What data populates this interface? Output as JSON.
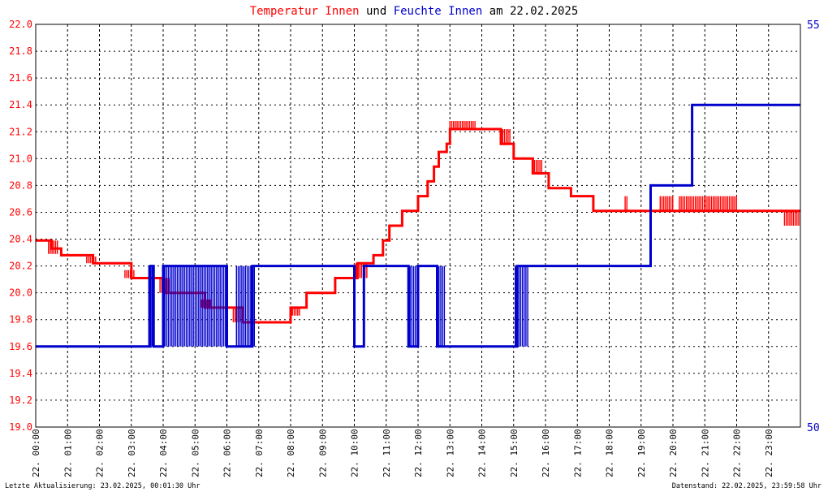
{
  "chart_data": {
    "type": "line",
    "title_parts": [
      {
        "text": "Temperatur Innen",
        "color": "#ff0000"
      },
      {
        "text": " und ",
        "color": "#000000"
      },
      {
        "text": "Feuchte Innen",
        "color": "#0000cc"
      },
      {
        "text": " am 22.02.2025",
        "color": "#000000"
      }
    ],
    "x_unit": "hour",
    "xlim": [
      0,
      24
    ],
    "x_tick_labels": [
      "22. 00:00",
      "22. 01:00",
      "22. 02:00",
      "22. 03:00",
      "22. 04:00",
      "22. 05:00",
      "22. 06:00",
      "22. 07:00",
      "22. 08:00",
      "22. 09:00",
      "22. 10:00",
      "22. 11:00",
      "22. 12:00",
      "22. 13:00",
      "22. 14:00",
      "22. 15:00",
      "22. 16:00",
      "22. 17:00",
      "22. 18:00",
      "22. 19:00",
      "22. 20:00",
      "22. 21:00",
      "22. 22:00",
      "22. 23:00"
    ],
    "y_left": {
      "ylim": [
        19.0,
        22.0
      ],
      "ticks": [
        "19.0",
        "19.2",
        "19.4",
        "19.6",
        "19.8",
        "20.0",
        "20.2",
        "20.4",
        "20.6",
        "20.8",
        "21.0",
        "21.2",
        "21.4",
        "21.6",
        "21.8",
        "22.0"
      ],
      "color": "#ff0000"
    },
    "y_right": {
      "ylim": [
        50,
        55
      ],
      "ticks": [
        "50",
        "55"
      ],
      "color": "#0000cc"
    },
    "grid": true,
    "series": [
      {
        "name": "Temperatur Innen",
        "axis": "left",
        "color": "#ff0000",
        "noise_bands": [
          [
            0.4,
            0.7,
            20.29,
            20.39
          ],
          [
            1.6,
            1.9,
            20.22,
            20.27
          ],
          [
            2.8,
            3.1,
            20.11,
            20.17
          ],
          [
            3.9,
            4.2,
            20.0,
            20.11
          ],
          [
            5.2,
            5.5,
            19.89,
            19.95
          ],
          [
            6.2,
            6.5,
            19.78,
            19.89
          ],
          [
            8.0,
            8.3,
            19.83,
            19.89
          ],
          [
            10.0,
            10.4,
            20.11,
            20.22
          ],
          [
            13.0,
            13.8,
            21.22,
            21.28
          ],
          [
            14.6,
            14.9,
            21.1,
            21.22
          ],
          [
            15.6,
            15.9,
            20.89,
            20.99
          ],
          [
            18.5,
            18.6,
            20.61,
            20.72
          ],
          [
            19.6,
            20.0,
            20.61,
            20.72
          ],
          [
            20.2,
            22.0,
            20.61,
            20.72
          ],
          [
            23.5,
            23.95,
            20.5,
            20.61
          ]
        ],
        "points": [
          [
            0,
            20.39
          ],
          [
            0.5,
            20.39
          ],
          [
            0.5,
            20.33
          ],
          [
            0.8,
            20.33
          ],
          [
            0.8,
            20.28
          ],
          [
            1.8,
            20.28
          ],
          [
            1.8,
            20.22
          ],
          [
            3.0,
            20.22
          ],
          [
            3.0,
            20.11
          ],
          [
            4.0,
            20.11
          ],
          [
            4.0,
            20.0
          ],
          [
            5.3,
            20.0
          ],
          [
            5.3,
            19.89
          ],
          [
            6.5,
            19.89
          ],
          [
            6.5,
            19.78
          ],
          [
            8.0,
            19.78
          ],
          [
            8.0,
            19.89
          ],
          [
            8.5,
            19.89
          ],
          [
            8.5,
            20.0
          ],
          [
            9.4,
            20.0
          ],
          [
            9.4,
            20.11
          ],
          [
            10.1,
            20.11
          ],
          [
            10.1,
            20.22
          ],
          [
            10.6,
            20.22
          ],
          [
            10.6,
            20.28
          ],
          [
            10.9,
            20.28
          ],
          [
            10.9,
            20.39
          ],
          [
            11.1,
            20.39
          ],
          [
            11.1,
            20.5
          ],
          [
            11.5,
            20.5
          ],
          [
            11.5,
            20.61
          ],
          [
            12.0,
            20.61
          ],
          [
            12.0,
            20.72
          ],
          [
            12.3,
            20.72
          ],
          [
            12.3,
            20.83
          ],
          [
            12.5,
            20.83
          ],
          [
            12.5,
            20.94
          ],
          [
            12.65,
            20.94
          ],
          [
            12.65,
            21.05
          ],
          [
            12.9,
            21.05
          ],
          [
            12.9,
            21.11
          ],
          [
            13.0,
            21.11
          ],
          [
            13.0,
            21.22
          ],
          [
            14.6,
            21.22
          ],
          [
            14.6,
            21.11
          ],
          [
            15.0,
            21.11
          ],
          [
            15.0,
            21.0
          ],
          [
            15.6,
            21.0
          ],
          [
            15.6,
            20.89
          ],
          [
            16.1,
            20.89
          ],
          [
            16.1,
            20.78
          ],
          [
            16.8,
            20.78
          ],
          [
            16.8,
            20.72
          ],
          [
            17.5,
            20.72
          ],
          [
            17.5,
            20.61
          ],
          [
            24.0,
            20.61
          ]
        ]
      },
      {
        "name": "Feuchte Innen",
        "axis": "right",
        "color": "#0000cc",
        "noise_bands": [
          [
            3.55,
            3.75,
            51.0,
            52.0
          ],
          [
            4.05,
            6.0,
            51.0,
            52.0
          ],
          [
            6.3,
            6.9,
            51.0,
            52.0
          ],
          [
            11.75,
            12.0,
            51.0,
            52.0
          ],
          [
            12.6,
            12.85,
            51.0,
            52.0
          ],
          [
            15.05,
            15.45,
            51.0,
            52.0
          ]
        ],
        "points": [
          [
            0,
            51.0
          ],
          [
            3.6,
            51.0
          ],
          [
            3.6,
            52.0
          ],
          [
            3.7,
            52.0
          ],
          [
            3.7,
            51.0
          ],
          [
            4.0,
            51.0
          ],
          [
            4.0,
            52.0
          ],
          [
            6.0,
            52.0
          ],
          [
            6.0,
            51.0
          ],
          [
            6.8,
            51.0
          ],
          [
            6.8,
            52.0
          ],
          [
            10.0,
            52.0
          ],
          [
            10.0,
            51.0
          ],
          [
            10.3,
            51.0
          ],
          [
            10.3,
            52.0
          ],
          [
            11.7,
            52.0
          ],
          [
            11.7,
            51.0
          ],
          [
            12.0,
            51.0
          ],
          [
            12.0,
            52.0
          ],
          [
            12.6,
            52.0
          ],
          [
            12.6,
            51.0
          ],
          [
            15.1,
            51.0
          ],
          [
            15.1,
            52.0
          ],
          [
            19.3,
            52.0
          ],
          [
            19.3,
            53.0
          ],
          [
            20.6,
            53.0
          ],
          [
            20.6,
            54.0
          ],
          [
            24.0,
            54.0
          ]
        ]
      }
    ]
  },
  "footer": {
    "left": "Letzte Aktualisierung: 23.02.2025, 00:01:30 Uhr",
    "right": "Datenstand: 22.02.2025, 23:59:58 Uhr"
  }
}
